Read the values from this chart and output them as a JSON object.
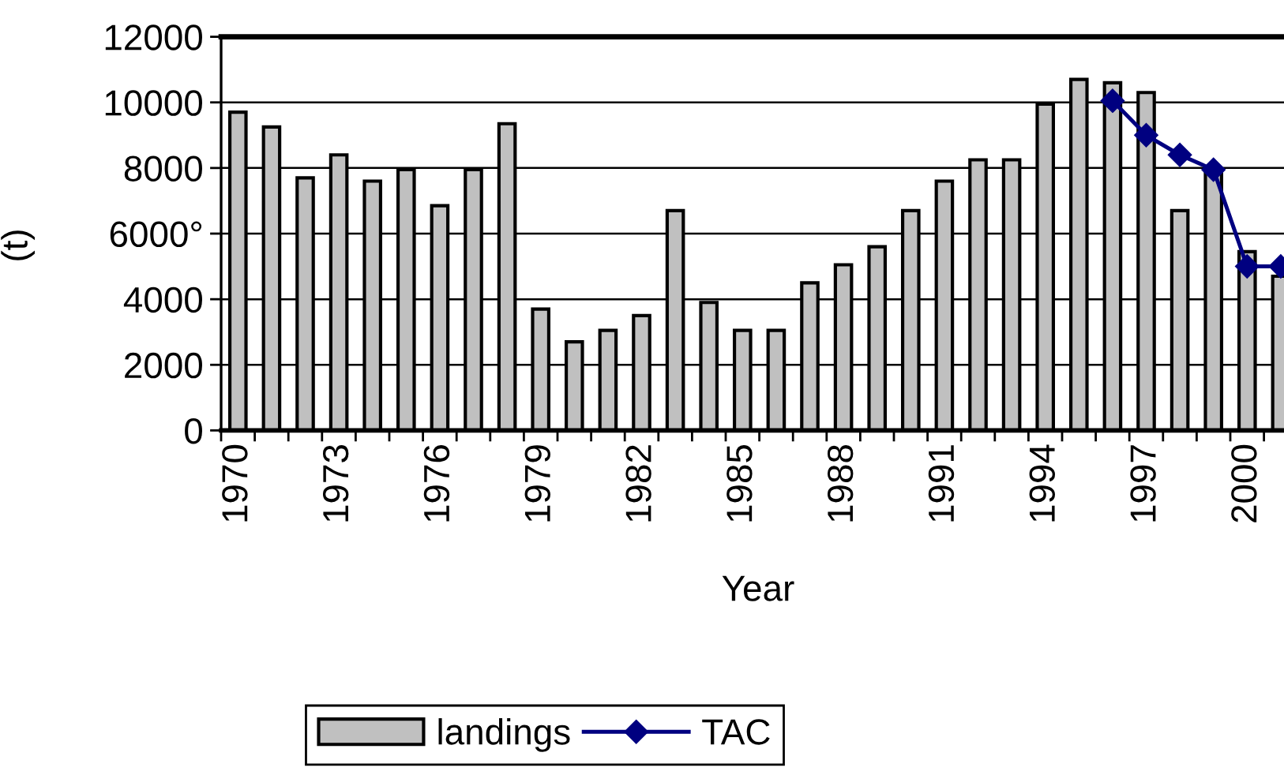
{
  "chart_data": {
    "type": "bar",
    "xlabel": "Year",
    "ylabel": "(t)",
    "categories": [
      "1970",
      null,
      null,
      "1973",
      null,
      null,
      "1976",
      null,
      null,
      "1979",
      null,
      null,
      "1982",
      null,
      null,
      "1985",
      null,
      null,
      "1988",
      null,
      null,
      "1991",
      null,
      null,
      "1994",
      null,
      null,
      "1997",
      null,
      null,
      "2000",
      null
    ],
    "series": [
      {
        "name": "landings",
        "color": "#c0c0c0",
        "values": [
          9700,
          9250,
          7700,
          8400,
          7600,
          7950,
          6850,
          7950,
          9350,
          3700,
          2700,
          3050,
          3500,
          6700,
          3900,
          3050,
          3050,
          4500,
          5050,
          5600,
          6700,
          7600,
          8250,
          8250,
          9950,
          10700,
          10600,
          10300,
          6700,
          7950,
          5450,
          4700
        ]
      },
      {
        "name": "TAC",
        "type": "line",
        "color": "#000080",
        "values": [
          null,
          null,
          null,
          null,
          null,
          null,
          null,
          null,
          null,
          null,
          null,
          null,
          null,
          null,
          null,
          null,
          null,
          null,
          null,
          null,
          null,
          null,
          null,
          null,
          null,
          null,
          10050,
          9000,
          8400,
          7950,
          5000,
          5000
        ]
      }
    ],
    "ylim": [
      0,
      12000
    ],
    "yticks": [
      0,
      2000,
      4000,
      {
        "value": 6000,
        "label": "6000°"
      },
      8000,
      10000,
      12000
    ],
    "grid": "y",
    "legend": "bottom",
    "marker": "diamond",
    "line_style": "solid"
  }
}
